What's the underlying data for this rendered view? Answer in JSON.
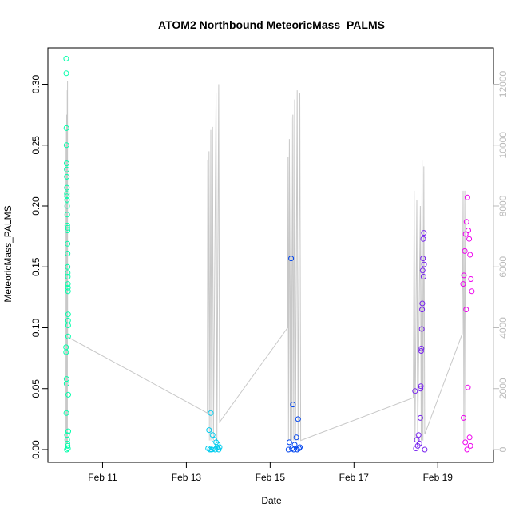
{
  "chart_data": {
    "type": "scatter",
    "title": "ATOM2 Northbound MeteoricMass_PALMS",
    "xlabel": "Date",
    "ylabel": "MeteoricMass_PALMS",
    "y_ticks": [
      "0.00",
      "0.05",
      "0.10",
      "0.15",
      "0.20",
      "0.25",
      "0.30"
    ],
    "y_tick_values": [
      0,
      0.05,
      0.1,
      0.15,
      0.2,
      0.25,
      0.3
    ],
    "ylim": [
      0,
      0.32
    ],
    "xlim": [
      "2017-02-10 00:00",
      "2017-02-20 01:30"
    ],
    "x_ticks": [
      "Feb 11",
      "Feb 13",
      "Feb 15",
      "Feb 17",
      "Feb 19"
    ],
    "y2_ticks": [
      "0",
      "2000",
      "4000",
      "6000",
      "8000",
      "10000",
      "12000"
    ],
    "y2_tick_values": [
      0,
      2000,
      4000,
      6000,
      8000,
      10000,
      12000
    ],
    "y2lim": [
      0,
      12800
    ],
    "grid": false,
    "series": [
      {
        "flight": 1,
        "color": "#00ffaa",
        "time_range": [
          "2017-02-10 03:00",
          "2017-02-10 04:30"
        ],
        "points": [
          [
            "2017-02-10 03:10",
            0.321
          ],
          [
            "2017-02-10 03:12",
            0.309
          ],
          [
            "2017-02-10 03:18",
            0.264
          ],
          [
            "2017-02-10 03:20",
            0.25
          ],
          [
            "2017-02-10 03:25",
            0.235
          ],
          [
            "2017-02-10 03:28",
            0.23
          ],
          [
            "2017-02-10 03:30",
            0.224
          ],
          [
            "2017-02-10 03:33",
            0.215
          ],
          [
            "2017-02-10 03:35",
            0.21
          ],
          [
            "2017-02-10 03:38",
            0.208
          ],
          [
            "2017-02-10 03:40",
            0.205
          ],
          [
            "2017-02-10 03:42",
            0.2
          ],
          [
            "2017-02-10 03:45",
            0.193
          ],
          [
            "2017-02-10 03:48",
            0.184
          ],
          [
            "2017-02-10 03:50",
            0.182
          ],
          [
            "2017-02-10 03:52",
            0.18
          ],
          [
            "2017-02-10 03:55",
            0.169
          ],
          [
            "2017-02-10 03:58",
            0.161
          ],
          [
            "2017-02-10 04:00",
            0.15
          ],
          [
            "2017-02-10 04:02",
            0.145
          ],
          [
            "2017-02-10 04:05",
            0.142
          ],
          [
            "2017-02-10 04:08",
            0.136
          ],
          [
            "2017-02-10 04:10",
            0.133
          ],
          [
            "2017-02-10 04:12",
            0.13
          ],
          [
            "2017-02-10 04:15",
            0.111
          ],
          [
            "2017-02-10 04:16",
            0.106
          ],
          [
            "2017-02-10 04:17",
            0.102
          ],
          [
            "2017-02-10 04:18",
            0.093
          ],
          [
            "2017-02-10 03:05",
            0.084
          ],
          [
            "2017-02-10 03:06",
            0.08
          ],
          [
            "2017-02-10 03:22",
            0.058
          ],
          [
            "2017-02-10 03:23",
            0.054
          ],
          [
            "2017-02-10 04:20",
            0.045
          ],
          [
            "2017-02-10 03:15",
            0.03
          ],
          [
            "2017-02-10 04:22",
            0.015
          ],
          [
            "2017-02-10 03:36",
            0.012
          ],
          [
            "2017-02-10 03:44",
            0.008
          ],
          [
            "2017-02-10 03:50",
            0.005
          ],
          [
            "2017-02-10 04:00",
            0.003
          ],
          [
            "2017-02-10 04:10",
            0.001
          ],
          [
            "2017-02-10 03:30",
            0.0
          ]
        ]
      },
      {
        "flight": 2,
        "color": "#00ccee",
        "time_range": [
          "2017-02-13 12:00",
          "2017-02-13 20:00"
        ],
        "points": [
          [
            "2017-02-13 14:00",
            0.03
          ],
          [
            "2017-02-13 13:00",
            0.016
          ],
          [
            "2017-02-13 15:00",
            0.012
          ],
          [
            "2017-02-13 16:00",
            0.008
          ],
          [
            "2017-02-13 17:00",
            0.006
          ],
          [
            "2017-02-13 18:00",
            0.004
          ],
          [
            "2017-02-13 19:00",
            0.002
          ],
          [
            "2017-02-13 12:30",
            0.001
          ],
          [
            "2017-02-13 13:30",
            0.0
          ],
          [
            "2017-02-13 14:30",
            0.0
          ],
          [
            "2017-02-13 15:30",
            0.001
          ],
          [
            "2017-02-13 16:30",
            0.0
          ],
          [
            "2017-02-13 17:30",
            0.002
          ],
          [
            "2017-02-13 18:30",
            0.0
          ]
        ]
      },
      {
        "flight": 3,
        "color": "#0044ee",
        "time_range": [
          "2017-02-15 10:00",
          "2017-02-15 18:00"
        ],
        "points": [
          [
            "2017-02-15 12:00",
            0.157
          ],
          [
            "2017-02-15 13:00",
            0.037
          ],
          [
            "2017-02-15 16:00",
            0.025
          ],
          [
            "2017-02-15 15:00",
            0.01
          ],
          [
            "2017-02-15 11:00",
            0.006
          ],
          [
            "2017-02-15 14:00",
            0.004
          ],
          [
            "2017-02-15 17:00",
            0.002
          ],
          [
            "2017-02-15 10:30",
            0.0
          ],
          [
            "2017-02-15 12:30",
            0.001
          ],
          [
            "2017-02-15 13:30",
            0.0
          ],
          [
            "2017-02-15 15:30",
            0.0
          ],
          [
            "2017-02-15 16:30",
            0.001
          ]
        ]
      },
      {
        "flight": 4,
        "color": "#7722ee",
        "time_range": [
          "2017-02-18 10:00",
          "2017-02-18 17:00"
        ],
        "points": [
          [
            "2017-02-18 16:00",
            0.178
          ],
          [
            "2017-02-18 15:40",
            0.173
          ],
          [
            "2017-02-18 15:30",
            0.157
          ],
          [
            "2017-02-18 16:10",
            0.152
          ],
          [
            "2017-02-18 15:20",
            0.147
          ],
          [
            "2017-02-18 15:50",
            0.142
          ],
          [
            "2017-02-18 15:10",
            0.12
          ],
          [
            "2017-02-18 15:00",
            0.115
          ],
          [
            "2017-02-18 14:50",
            0.099
          ],
          [
            "2017-02-18 14:40",
            0.083
          ],
          [
            "2017-02-18 14:30",
            0.081
          ],
          [
            "2017-02-18 14:20",
            0.052
          ],
          [
            "2017-02-18 14:10",
            0.05
          ],
          [
            "2017-02-18 11:00",
            0.048
          ],
          [
            "2017-02-18 14:00",
            0.026
          ],
          [
            "2017-02-18 13:00",
            0.012
          ],
          [
            "2017-02-18 12:00",
            0.008
          ],
          [
            "2017-02-18 13:30",
            0.005
          ],
          [
            "2017-02-18 12:30",
            0.003
          ],
          [
            "2017-02-18 11:30",
            0.001
          ],
          [
            "2017-02-18 16:30",
            0.0
          ]
        ]
      },
      {
        "flight": 5,
        "color": "#ee00ee",
        "time_range": [
          "2017-02-19 14:00",
          "2017-02-19 20:00"
        ],
        "points": [
          [
            "2017-02-19 17:00",
            0.207
          ],
          [
            "2017-02-19 16:30",
            0.187
          ],
          [
            "2017-02-19 17:30",
            0.18
          ],
          [
            "2017-02-19 16:00",
            0.177
          ],
          [
            "2017-02-19 18:00",
            0.173
          ],
          [
            "2017-02-19 15:30",
            0.163
          ],
          [
            "2017-02-19 18:30",
            0.16
          ],
          [
            "2017-02-19 15:00",
            0.143
          ],
          [
            "2017-02-19 19:00",
            0.14
          ],
          [
            "2017-02-19 14:30",
            0.136
          ],
          [
            "2017-02-19 19:30",
            0.13
          ],
          [
            "2017-02-19 16:15",
            0.115
          ],
          [
            "2017-02-19 17:15",
            0.051
          ],
          [
            "2017-02-19 14:45",
            0.026
          ],
          [
            "2017-02-19 18:15",
            0.01
          ],
          [
            "2017-02-19 15:45",
            0.006
          ],
          [
            "2017-02-19 18:45",
            0.003
          ],
          [
            "2017-02-19 16:45",
            0.0
          ]
        ]
      }
    ],
    "altitude_line": {
      "color": "#c8c8c8",
      "axis": "right",
      "points": [
        [
          "2017-02-10 03:00",
          0
        ],
        [
          "2017-02-10 03:05",
          10000
        ],
        [
          "2017-02-10 03:10",
          200
        ],
        [
          "2017-02-10 03:15",
          10500
        ],
        [
          "2017-02-10 03:20",
          300
        ],
        [
          "2017-02-10 03:25",
          11000
        ],
        [
          "2017-02-10 03:30",
          200
        ],
        [
          "2017-02-10 03:35",
          9500
        ],
        [
          "2017-02-10 03:40",
          300
        ],
        [
          "2017-02-10 03:45",
          11800
        ],
        [
          "2017-02-10 03:50",
          200
        ],
        [
          "2017-02-10 03:55",
          12100
        ],
        [
          "2017-02-10 04:00",
          3700
        ],
        [
          "2017-02-13 12:00",
          1200
        ],
        [
          "2017-02-13 12:15",
          9500
        ],
        [
          "2017-02-13 12:30",
          300
        ],
        [
          "2017-02-13 13:00",
          9800
        ],
        [
          "2017-02-13 13:30",
          300
        ],
        [
          "2017-02-13 14:00",
          10500
        ],
        [
          "2017-02-13 14:30",
          300
        ],
        [
          "2017-02-13 15:00",
          10600
        ],
        [
          "2017-02-13 15:30",
          300
        ],
        [
          "2017-02-13 17:00",
          11700
        ],
        [
          "2017-02-13 17:30",
          300
        ],
        [
          "2017-02-13 18:30",
          12000
        ],
        [
          "2017-02-13 19:00",
          900
        ],
        [
          "2017-02-15 10:00",
          4000
        ],
        [
          "2017-02-15 10:15",
          9600
        ],
        [
          "2017-02-15 10:30",
          300
        ],
        [
          "2017-02-15 11:00",
          10200
        ],
        [
          "2017-02-15 11:30",
          300
        ],
        [
          "2017-02-15 12:00",
          10900
        ],
        [
          "2017-02-15 12:30",
          300
        ],
        [
          "2017-02-15 13:00",
          11000
        ],
        [
          "2017-02-15 13:30",
          300
        ],
        [
          "2017-02-15 14:00",
          11500
        ],
        [
          "2017-02-15 14:30",
          300
        ],
        [
          "2017-02-15 15:30",
          11800
        ],
        [
          "2017-02-15 16:00",
          300
        ],
        [
          "2017-02-15 17:00",
          11700
        ],
        [
          "2017-02-15 17:30",
          300
        ],
        [
          "2017-02-18 10:00",
          1700
        ],
        [
          "2017-02-18 10:30",
          8500
        ],
        [
          "2017-02-18 11:00",
          300
        ],
        [
          "2017-02-18 12:00",
          8200
        ],
        [
          "2017-02-18 12:30",
          300
        ],
        [
          "2017-02-18 14:00",
          8000
        ],
        [
          "2017-02-18 14:30",
          300
        ],
        [
          "2017-02-18 15:00",
          9500
        ],
        [
          "2017-02-18 15:30",
          300
        ],
        [
          "2017-02-18 16:00",
          9300
        ],
        [
          "2017-02-18 16:30",
          500
        ],
        [
          "2017-02-19 14:00",
          3800
        ],
        [
          "2017-02-19 14:30",
          8500
        ],
        [
          "2017-02-19 15:00",
          300
        ],
        [
          "2017-02-19 15:30",
          8500
        ],
        [
          "2017-02-19 16:00",
          300
        ]
      ]
    }
  }
}
